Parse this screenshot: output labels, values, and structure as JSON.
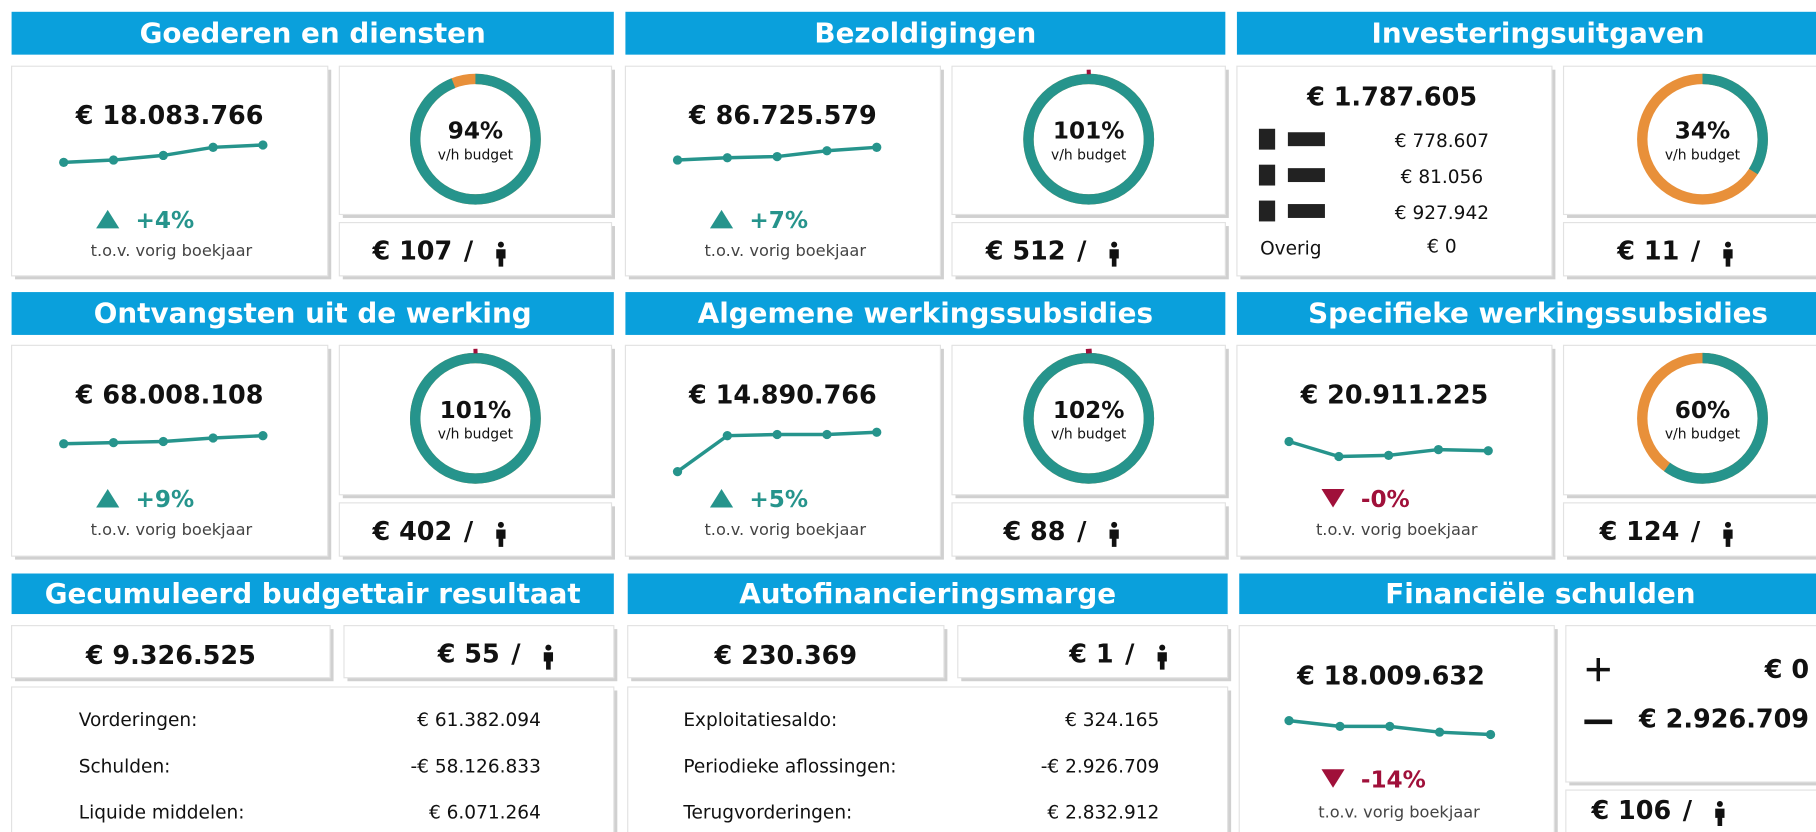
{
  "separator": "/",
  "panels": [
    {
      "title": "Goederen en diensten",
      "amount": "€ 18.083.766",
      "trend": [
        10,
        12,
        16,
        23,
        25
      ],
      "change": "+4%",
      "direction": "up",
      "caption": "t.o.v. vorig boekjaar",
      "budget": {
        "value": 94,
        "label": "94%"
      },
      "budget_caption": "v/h budget",
      "per_capita": "€ 107"
    },
    {
      "title": "Bezoldigingen",
      "amount": "€ 86.725.579",
      "trend": [
        12,
        14,
        15,
        20,
        23
      ],
      "change": "+7%",
      "direction": "up",
      "caption": "t.o.v. vorig boekjaar",
      "budget": {
        "value": 101,
        "label": "101%"
      },
      "budget_caption": "v/h budget",
      "per_capita": "€ 512"
    },
    {
      "title": "Investeringsuitgaven",
      "amount": "€ 1.787.605",
      "breakdown": [
        "€ 778.607",
        "€ 81.056",
        "€ 927.942"
      ],
      "other_label": "Overig",
      "other_value": "€ 0",
      "budget": {
        "value": 34,
        "label": "34%"
      },
      "budget_caption": "v/h budget",
      "per_capita": "€ 11"
    },
    {
      "title": "Ontvangsten uit de werking",
      "amount": "€ 68.008.108",
      "trend": [
        25,
        26,
        27,
        30,
        32
      ],
      "change": "+9%",
      "direction": "up",
      "caption": "t.o.v. vorig boekjaar",
      "budget": {
        "value": 101,
        "label": "101%"
      },
      "budget_caption": "v/h budget",
      "per_capita": "€ 402"
    },
    {
      "title": "Algemene werkingssubsidies",
      "amount": "€ 14.890.766",
      "trend": [
        1,
        32,
        33,
        33,
        35
      ],
      "change": "+5%",
      "direction": "up",
      "caption": "t.o.v. vorig boekjaar",
      "budget": {
        "value": 102,
        "label": "102%"
      },
      "budget_caption": "v/h budget",
      "per_capita": "€ 88"
    },
    {
      "title": "Specifieke werkingssubsidies",
      "amount": "€ 20.911.225",
      "trend": [
        27,
        14,
        15,
        20,
        19
      ],
      "change": "-0%",
      "direction": "down",
      "caption": "t.o.v. vorig boekjaar",
      "budget": {
        "value": 60,
        "label": "60%"
      },
      "budget_caption": "v/h budget",
      "per_capita": "€ 124"
    },
    {
      "title": "Gecumuleerd budgettair resultaat",
      "amount": "€ 9.326.525",
      "per_capita": "€ 55",
      "rows": [
        [
          "Vorderingen:",
          "€ 61.382.094"
        ],
        [
          "Schulden:",
          "-€ 58.126.833"
        ],
        [
          "Liquide middelen:",
          "€ 6.071.264"
        ]
      ]
    },
    {
      "title": "Autofinancieringsmarge",
      "amount": "€ 230.369",
      "per_capita": "€ 1",
      "rows": [
        [
          "Exploitatiesaldo:",
          "€ 324.165"
        ],
        [
          "Periodieke aflossingen:",
          "-€ 2.926.709"
        ],
        [
          "Terugvorderingen:",
          "€ 2.832.912"
        ]
      ]
    },
    {
      "title": "Financiële schulden",
      "amount": "€ 18.009.632",
      "trend": [
        18,
        13,
        13,
        8,
        6
      ],
      "change": "-14%",
      "direction": "down",
      "caption": "t.o.v. vorig boekjaar",
      "additions": "€ 0",
      "repayments": "€ 2.926.709",
      "per_capita": "€ 106"
    }
  ]
}
